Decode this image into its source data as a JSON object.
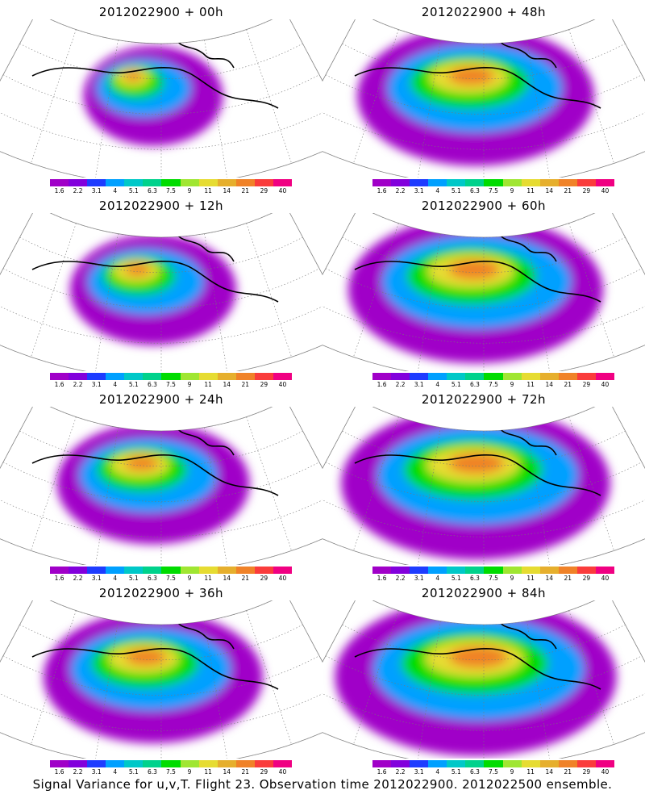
{
  "footer": "Signal Variance for u,v,T. Flight 23. Observation time 2012022900. 2012022500 ensemble.",
  "colorbar": {
    "labels": [
      "1.6",
      "2.2",
      "3.1",
      "4",
      "5.1",
      "6.3",
      "7.5",
      "9",
      "11",
      "14",
      "21",
      "29",
      "40"
    ],
    "colors": [
      "#a000c8",
      "#8200dc",
      "#1e3cff",
      "#00a0ff",
      "#00c8c8",
      "#00d28c",
      "#00dc00",
      "#a0e632",
      "#e6dc32",
      "#e6af2d",
      "#f08228",
      "#fa3c3c",
      "#f00082"
    ]
  },
  "panels": [
    {
      "title": "2012022900 + 00h",
      "intensity": 0.15
    },
    {
      "title": "2012022900 + 48h",
      "intensity": 0.7
    },
    {
      "title": "2012022900 + 12h",
      "intensity": 0.3
    },
    {
      "title": "2012022900 + 60h",
      "intensity": 0.8
    },
    {
      "title": "2012022900 + 24h",
      "intensity": 0.45
    },
    {
      "title": "2012022900 + 72h",
      "intensity": 0.88
    },
    {
      "title": "2012022900 + 36h",
      "intensity": 0.6
    },
    {
      "title": "2012022900 + 84h",
      "intensity": 0.95
    }
  ]
}
